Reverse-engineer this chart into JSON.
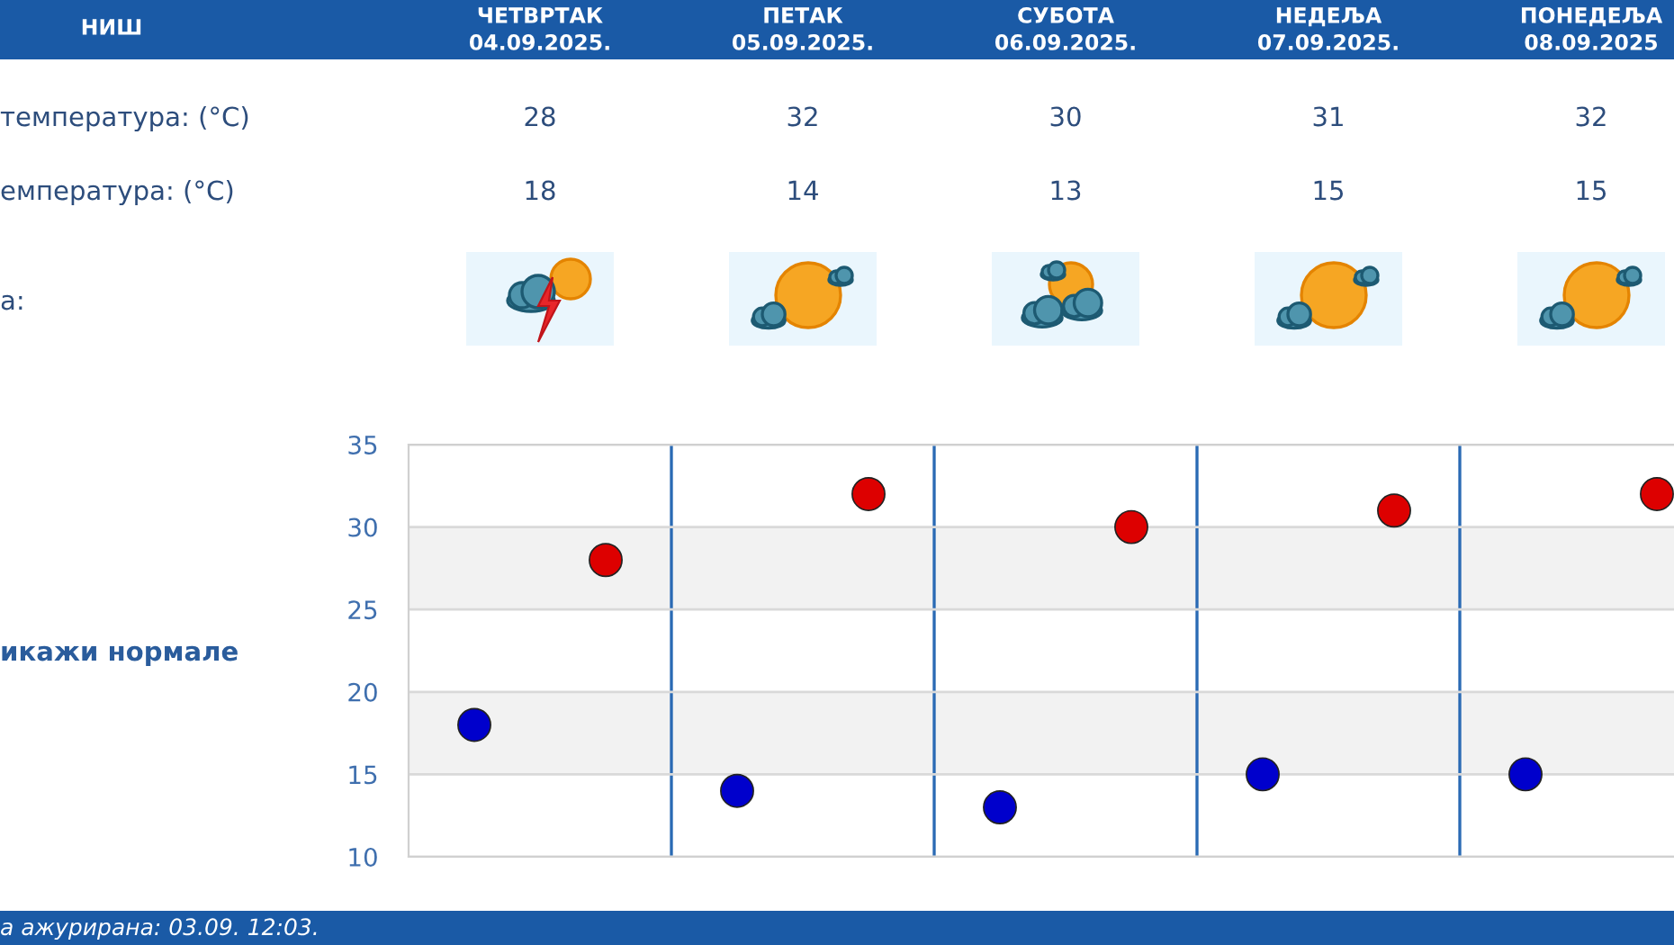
{
  "chart_data": {
    "type": "scatter",
    "title": "НИШ",
    "categories": [
      null,
      null,
      null,
      null,
      null
    ],
    "series": [
      {
        "color": "#dd0000",
        "values": [
          28,
          32,
          30,
          31,
          32
        ]
      },
      {
        "color": "#0000cc",
        "values": [
          18,
          14,
          13,
          15,
          15
        ]
      }
    ],
    "ylim": [
      10,
      35
    ],
    "yticks": [
      10,
      15,
      20,
      25,
      30,
      35
    ],
    "grid": true,
    "marker": "circle",
    "data_labels": true,
    "tick_labels": "y",
    "bands": [
      {
        "axis": "y",
        "from": 15,
        "to": 20,
        "color": "#f2f2f2"
      },
      {
        "axis": "y",
        "from": 25,
        "to": 30,
        "color": "#f2f2f2"
      }
    ],
    "annotations": [
      "ЧЕТВРТАК\n04.09.2025.",
      "ПЕТАК\n05.09.2025.",
      "СУБОТА\n06.09.2025.",
      "НЕДЕЉА\n07.09.2025.",
      "ПОНЕДЕЉА\n08.09.2025",
      "температура: (°C)",
      "емпература: (°C)",
      "а:",
      "икажи нормале",
      "а ажурирана: 03.09. 12:03."
    ]
  }
}
